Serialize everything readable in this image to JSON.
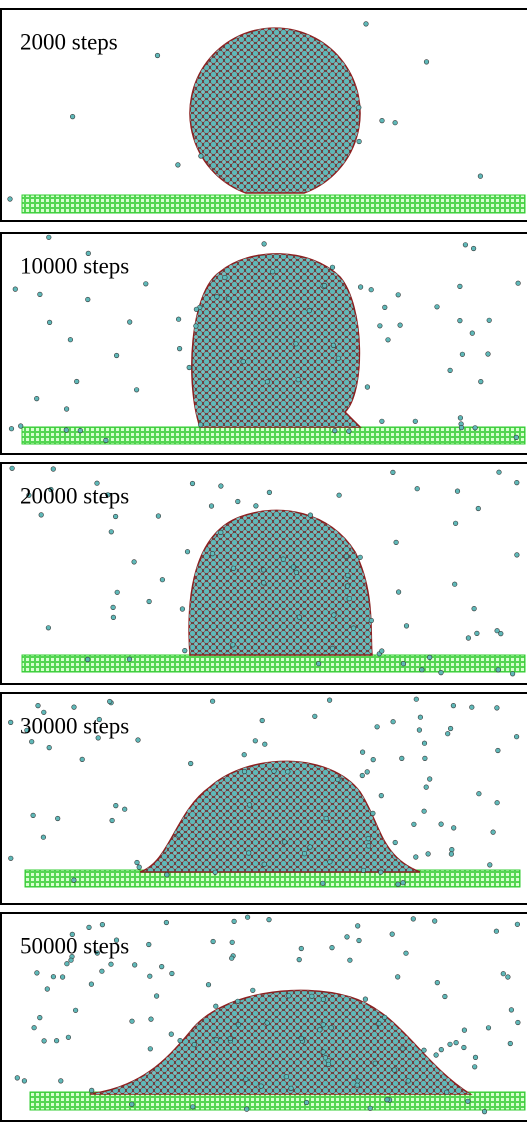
{
  "panels": [
    {
      "label": "2000 steps"
    },
    {
      "label": "10000 steps"
    },
    {
      "label": "20000 steps"
    },
    {
      "label": "30000 steps"
    },
    {
      "label": "50000 steps"
    }
  ]
}
